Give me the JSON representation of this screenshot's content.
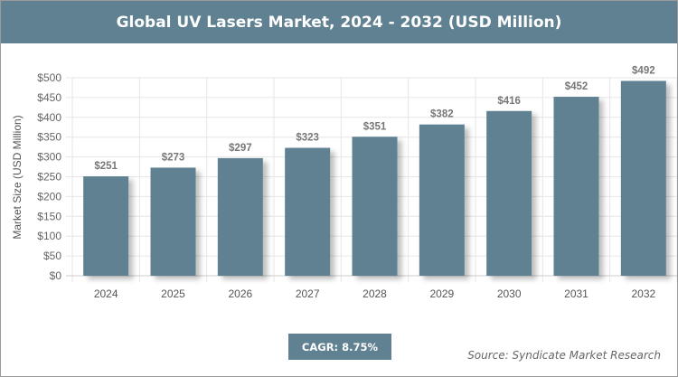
{
  "chart_data": {
    "type": "bar",
    "title": "Global UV Lasers Market, 2024 - 2032 (USD Million)",
    "ylabel": "Market Size (USD Million)",
    "xlabel": "",
    "categories": [
      "2024",
      "2025",
      "2026",
      "2027",
      "2028",
      "2029",
      "2030",
      "2031",
      "2032"
    ],
    "values": [
      251,
      273,
      297,
      323,
      351,
      382,
      416,
      452,
      492
    ],
    "data_labels": [
      "$251",
      "$273",
      "$297",
      "$323",
      "$351",
      "$382",
      "$416",
      "$452",
      "$492"
    ],
    "ylim": [
      0,
      500
    ],
    "yticks": [
      0,
      50,
      100,
      150,
      200,
      250,
      300,
      350,
      400,
      450,
      500
    ],
    "ytick_labels": [
      "$0",
      "$50",
      "$100",
      "$150",
      "$200",
      "$250",
      "$300",
      "$350",
      "$400",
      "$450",
      "$500"
    ],
    "grid": true,
    "bar_color": "#5f8192"
  },
  "footer": {
    "cagr": "CAGR: 8.75%",
    "source": "Source: Syndicate Market Research"
  }
}
